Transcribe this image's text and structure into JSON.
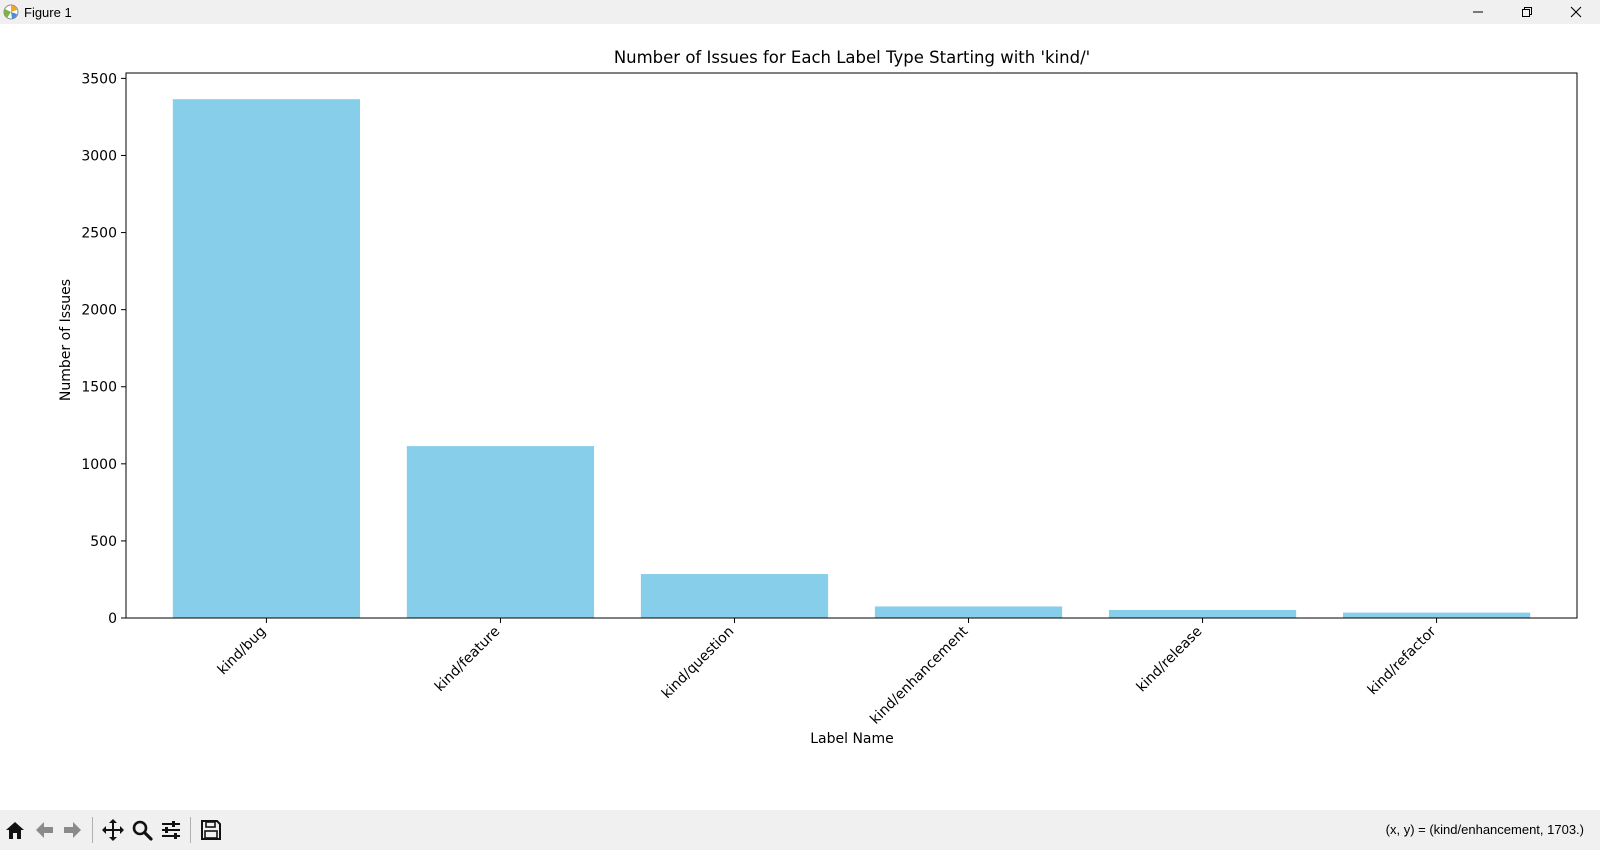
{
  "window": {
    "title": "Figure 1",
    "controls": [
      "minimize-icon",
      "restore-icon",
      "close-icon"
    ]
  },
  "toolbar": {
    "buttons": [
      "home-icon",
      "back-icon",
      "forward-icon",
      "pan-icon",
      "zoom-icon",
      "configure-subplots-icon",
      "save-icon"
    ],
    "coords": "(x, y) = (kind/enhancement, 1703.)"
  },
  "chart_data": {
    "type": "bar",
    "title": "Number of Issues for Each Label Type Starting with 'kind/'",
    "xlabel": "Label Name",
    "ylabel": "Number of Issues",
    "categories": [
      "kind/bug",
      "kind/feature",
      "kind/question",
      "kind/enhancement",
      "kind/release",
      "kind/refactor"
    ],
    "values": [
      3365,
      1115,
      285,
      75,
      52,
      35
    ],
    "ylim": [
      0,
      3535
    ],
    "yticks": [
      0,
      500,
      1000,
      1500,
      2000,
      2500,
      3000,
      3500
    ],
    "bar_color": "#87ceeb",
    "grid": false,
    "legend": "none"
  }
}
